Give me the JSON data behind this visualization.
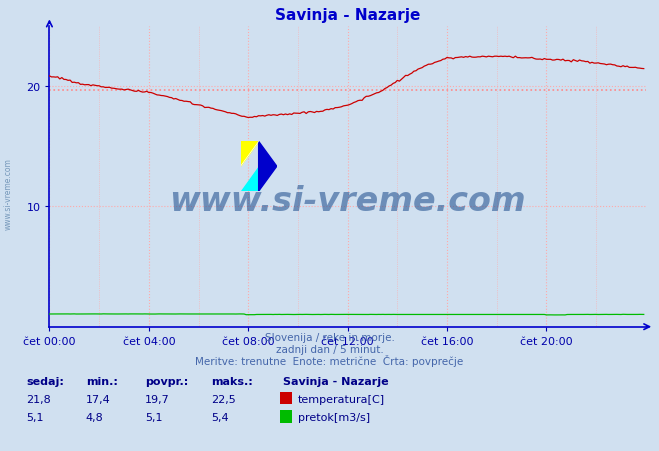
{
  "title": "Savinja - Nazarje",
  "title_color": "#0000cc",
  "bg_color": "#d0e0f0",
  "plot_bg_color": "#d0e0f0",
  "xlim": [
    0,
    288
  ],
  "ylim": [
    0,
    25
  ],
  "yticks": [
    10,
    20
  ],
  "xtick_labels": [
    "čet 00:00",
    "čet 04:00",
    "čet 08:00",
    "čet 12:00",
    "čet 16:00",
    "čet 20:00"
  ],
  "xtick_positions": [
    0,
    48,
    96,
    144,
    192,
    240
  ],
  "temp_avg": 19.7,
  "temp_min": 17.4,
  "temp_max": 22.5,
  "temp_current": 21.8,
  "flow_avg": 5.1,
  "flow_min": 4.8,
  "flow_max": 5.4,
  "flow_current": 5.1,
  "flow_scale": 0.2,
  "temp_color": "#cc0000",
  "flow_color": "#00bb00",
  "avg_line_color": "#ff8888",
  "grid_color": "#ffaaaa",
  "axis_color": "#0000cc",
  "tick_color": "#0000aa",
  "footer_line1": "Slovenija / reke in morje.",
  "footer_line2": "zadnji dan / 5 minut.",
  "footer_line3": "Meritve: trenutne  Enote: metrične  Črta: povprečje",
  "footer_color": "#4466aa",
  "label_color": "#000088",
  "watermark": "www.si-vreme.com",
  "watermark_color": "#1a4a8a",
  "watermark_alpha": 0.55,
  "side_watermark_color": "#7799bb"
}
